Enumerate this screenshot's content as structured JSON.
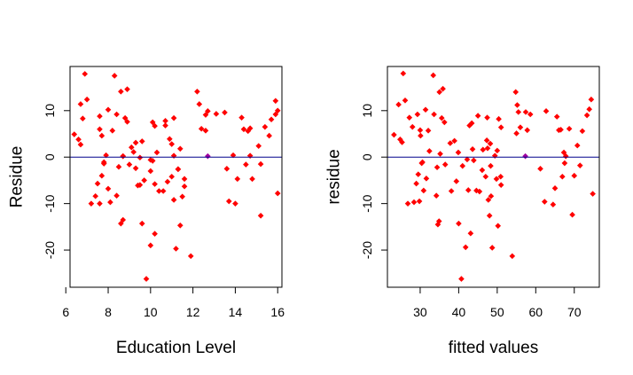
{
  "colors": {
    "points": "#ff0000",
    "baseline": "#00008b",
    "highlight": "#a000a0",
    "axes": "#000000"
  },
  "chart_data": [
    {
      "type": "scatter",
      "xlabel": "Education Level",
      "ylabel": "Residue",
      "xlim": [
        6.2,
        16.2
      ],
      "ylim": [
        -28,
        19.5
      ],
      "xticks": [
        6,
        8,
        10,
        12,
        14,
        16
      ],
      "xtick_labels": [
        "6",
        "8",
        "10",
        "12",
        "14",
        "16"
      ],
      "yticks": [
        -20,
        -10,
        0,
        10
      ],
      "ytick_labels": [
        "-20",
        "-10",
        "0",
        "10"
      ],
      "reference_line_y": 0,
      "grid": false,
      "highlight_point": {
        "x": 12.7,
        "y": 0.2
      },
      "points": [
        [
          6.4,
          4.9
        ],
        [
          6.6,
          3.8
        ],
        [
          6.7,
          11.4
        ],
        [
          6.7,
          2.7
        ],
        [
          6.8,
          8.3
        ],
        [
          6.9,
          17.9
        ],
        [
          7.0,
          12.4
        ],
        [
          7.2,
          -10.0
        ],
        [
          7.4,
          -8.4
        ],
        [
          7.5,
          -5.7
        ],
        [
          7.6,
          -10.0
        ],
        [
          7.6,
          6.0
        ],
        [
          7.6,
          8.8
        ],
        [
          7.7,
          4.6
        ],
        [
          7.7,
          -4.0
        ],
        [
          7.8,
          -1.4
        ],
        [
          7.8,
          -1.1
        ],
        [
          7.9,
          0.4
        ],
        [
          8.0,
          10.2
        ],
        [
          8.0,
          -6.8
        ],
        [
          8.1,
          -9.7
        ],
        [
          8.2,
          5.7
        ],
        [
          8.3,
          17.5
        ],
        [
          8.4,
          9.2
        ],
        [
          8.4,
          -8.3
        ],
        [
          8.5,
          -2.1
        ],
        [
          8.6,
          -14.3
        ],
        [
          8.6,
          14.1
        ],
        [
          8.7,
          -13.5
        ],
        [
          8.7,
          0.2
        ],
        [
          8.7,
          0.2
        ],
        [
          8.8,
          8.4
        ],
        [
          8.9,
          14.6
        ],
        [
          8.9,
          7.6
        ],
        [
          9.0,
          -1.6
        ],
        [
          9.1,
          2.1
        ],
        [
          9.2,
          1.1
        ],
        [
          9.3,
          3.1
        ],
        [
          9.3,
          -2.4
        ],
        [
          9.4,
          -6.1
        ],
        [
          9.5,
          -0.1
        ],
        [
          9.5,
          -6.0
        ],
        [
          9.6,
          3.4
        ],
        [
          9.6,
          -14.3
        ],
        [
          9.7,
          -5.0
        ],
        [
          9.8,
          -26.2
        ],
        [
          10.0,
          -0.6
        ],
        [
          10.0,
          -19.0
        ],
        [
          10.0,
          -3.0
        ],
        [
          10.1,
          7.5
        ],
        [
          10.1,
          -0.8
        ],
        [
          10.2,
          -16.5
        ],
        [
          10.2,
          -5.8
        ],
        [
          10.2,
          6.7
        ],
        [
          10.3,
          1.0
        ],
        [
          10.4,
          -7.3
        ],
        [
          10.6,
          -7.3
        ],
        [
          10.7,
          7.8
        ],
        [
          10.7,
          6.8
        ],
        [
          10.8,
          -5.3
        ],
        [
          10.9,
          3.9
        ],
        [
          11.0,
          2.8
        ],
        [
          11.0,
          -4.2
        ],
        [
          11.1,
          8.4
        ],
        [
          11.1,
          -9.2
        ],
        [
          11.1,
          0.3
        ],
        [
          11.2,
          -19.7
        ],
        [
          11.3,
          -2.6
        ],
        [
          11.3,
          -2.6
        ],
        [
          11.4,
          1.8
        ],
        [
          11.4,
          -14.7
        ],
        [
          11.5,
          -8.5
        ],
        [
          11.6,
          -6.3
        ],
        [
          11.6,
          -4.7
        ],
        [
          11.9,
          -21.3
        ],
        [
          12.2,
          14.1
        ],
        [
          12.3,
          11.4
        ],
        [
          12.4,
          6.1
        ],
        [
          12.6,
          9.1
        ],
        [
          12.6,
          5.7
        ],
        [
          12.7,
          9.9
        ],
        [
          13.1,
          9.3
        ],
        [
          13.5,
          9.6
        ],
        [
          13.6,
          -2.5
        ],
        [
          13.7,
          -9.5
        ],
        [
          13.9,
          0.4
        ],
        [
          14.0,
          -10.0
        ],
        [
          14.1,
          -4.7
        ],
        [
          14.3,
          8.5
        ],
        [
          14.4,
          6.0
        ],
        [
          14.6,
          5.6
        ],
        [
          14.5,
          -1.6
        ],
        [
          14.7,
          6.2
        ],
        [
          14.7,
          0.3
        ],
        [
          14.8,
          -4.7
        ],
        [
          15.1,
          2.4
        ],
        [
          15.2,
          -12.6
        ],
        [
          15.2,
          -1.5
        ],
        [
          15.4,
          6.5
        ],
        [
          15.6,
          4.6
        ],
        [
          15.7,
          8.1
        ],
        [
          15.9,
          9.2
        ],
        [
          15.9,
          12.1
        ],
        [
          16.0,
          10.0
        ],
        [
          16.0,
          -7.8
        ]
      ]
    },
    {
      "type": "scatter",
      "xlabel": "fitted values",
      "ylabel": "residue",
      "xlim": [
        21.5,
        76.5
      ],
      "ylim": [
        -28,
        19.5
      ],
      "xticks": [
        30,
        40,
        50,
        60,
        70
      ],
      "xtick_labels": [
        "30",
        "40",
        "50",
        "60",
        "70"
      ],
      "yticks": [
        -20,
        -10,
        0,
        10
      ],
      "ytick_labels": [
        "-20",
        "-10",
        "0",
        "10"
      ],
      "reference_line_y": 0,
      "grid": false,
      "highlight_point": {
        "x": 57.3,
        "y": 0.2
      },
      "points": [
        [
          23.2,
          4.8
        ],
        [
          24.4,
          11.3
        ],
        [
          24.8,
          3.8
        ],
        [
          25.3,
          3.2
        ],
        [
          25.6,
          18.0
        ],
        [
          26.1,
          12.2
        ],
        [
          26.8,
          -10.0
        ],
        [
          27.2,
          8.5
        ],
        [
          28.0,
          6.5
        ],
        [
          28.4,
          -9.7
        ],
        [
          29.0,
          -5.7
        ],
        [
          29.3,
          9.2
        ],
        [
          29.5,
          -3.7
        ],
        [
          29.8,
          -9.5
        ],
        [
          30.0,
          5.8
        ],
        [
          30.1,
          4.6
        ],
        [
          30.4,
          -1.3
        ],
        [
          30.6,
          -1.1
        ],
        [
          30.9,
          -7.2
        ],
        [
          31.4,
          10.2
        ],
        [
          31.6,
          -4.6
        ],
        [
          32.1,
          5.7
        ],
        [
          32.4,
          1.3
        ],
        [
          33.4,
          17.6
        ],
        [
          33.6,
          9.2
        ],
        [
          34.2,
          -8.3
        ],
        [
          34.4,
          -2.2
        ],
        [
          34.6,
          -14.5
        ],
        [
          34.9,
          -13.8
        ],
        [
          35.0,
          14.0
        ],
        [
          35.2,
          0.7
        ],
        [
          35.6,
          8.4
        ],
        [
          35.9,
          14.7
        ],
        [
          36.3,
          7.5
        ],
        [
          36.5,
          -1.6
        ],
        [
          37.8,
          3.0
        ],
        [
          38.1,
          -7.3
        ],
        [
          38.9,
          3.5
        ],
        [
          39.4,
          -5.2
        ],
        [
          39.9,
          1.0
        ],
        [
          40.0,
          -14.3
        ],
        [
          40.7,
          -26.2
        ],
        [
          41.0,
          -1.9
        ],
        [
          41.8,
          -19.4
        ],
        [
          42.2,
          -0.5
        ],
        [
          42.5,
          -7.1
        ],
        [
          42.8,
          6.8
        ],
        [
          43.1,
          -16.4
        ],
        [
          43.4,
          7.3
        ],
        [
          43.6,
          1.7
        ],
        [
          43.9,
          -0.7
        ],
        [
          44.6,
          -7.2
        ],
        [
          45.0,
          8.9
        ],
        [
          45.4,
          -7.4
        ],
        [
          46.1,
          -2.8
        ],
        [
          46.3,
          1.6
        ],
        [
          47.0,
          -4.2
        ],
        [
          47.4,
          8.5
        ],
        [
          47.3,
          3.6
        ],
        [
          47.5,
          1.9
        ],
        [
          47.7,
          -9.2
        ],
        [
          48.0,
          -12.6
        ],
        [
          48.3,
          -1.9
        ],
        [
          48.2,
          2.9
        ],
        [
          48.4,
          -8.4
        ],
        [
          48.7,
          -19.5
        ],
        [
          49.4,
          0.3
        ],
        [
          49.8,
          -4.7
        ],
        [
          50.2,
          -14.8
        ],
        [
          50.0,
          1.4
        ],
        [
          50.4,
          8.2
        ],
        [
          51.0,
          -6.0
        ],
        [
          50.9,
          -4.2
        ],
        [
          51.0,
          6.4
        ],
        [
          53.9,
          -21.3
        ],
        [
          54.8,
          14.0
        ],
        [
          55.2,
          11.2
        ],
        [
          55.0,
          5.1
        ],
        [
          55.5,
          9.7
        ],
        [
          56.0,
          6.4
        ],
        [
          57.4,
          9.7
        ],
        [
          57.8,
          5.8
        ],
        [
          58.6,
          9.2
        ],
        [
          61.2,
          -2.5
        ],
        [
          62.3,
          -9.6
        ],
        [
          62.7,
          9.9
        ],
        [
          64.5,
          -10.2
        ],
        [
          65.0,
          -6.7
        ],
        [
          65.5,
          8.7
        ],
        [
          66.0,
          5.8
        ],
        [
          66.5,
          5.9
        ],
        [
          66.9,
          -4.2
        ],
        [
          67.3,
          1.0
        ],
        [
          67.8,
          0.2
        ],
        [
          67.5,
          -1.3
        ],
        [
          68.7,
          6.1
        ],
        [
          69.5,
          -12.4
        ],
        [
          70.8,
          2.5
        ],
        [
          72.1,
          5.6
        ],
        [
          73.3,
          9.0
        ],
        [
          73.9,
          10.3
        ],
        [
          74.4,
          12.4
        ],
        [
          74.8,
          -7.9
        ],
        [
          70.0,
          -4.0
        ],
        [
          71.5,
          -1.8
        ]
      ]
    }
  ]
}
